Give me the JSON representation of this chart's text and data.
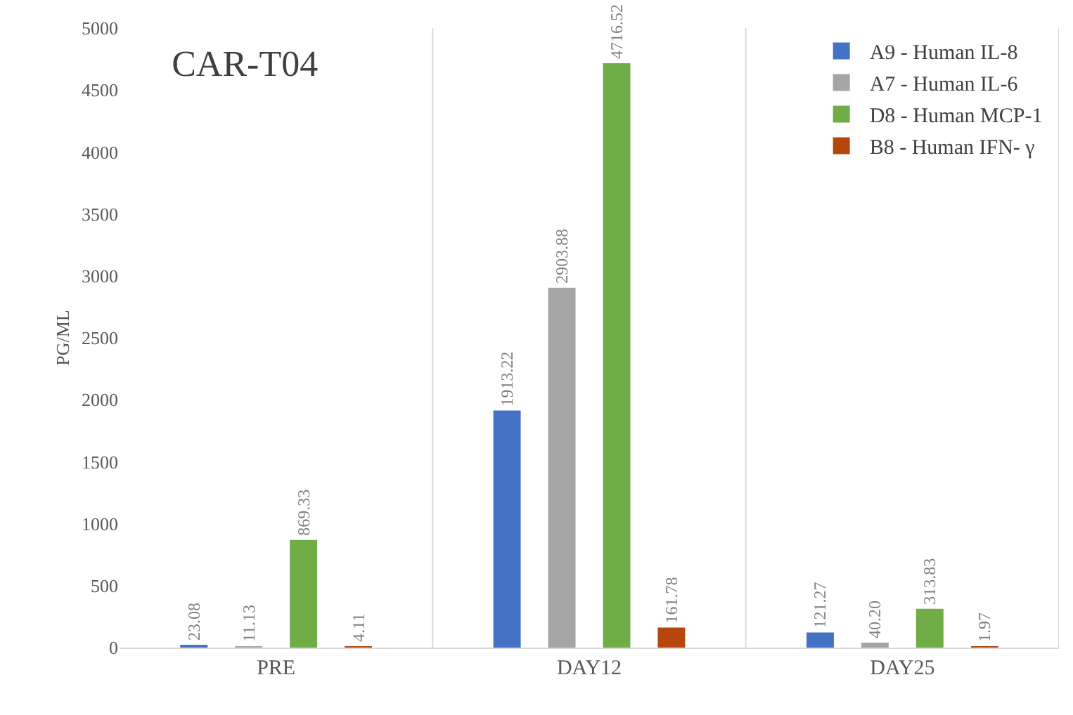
{
  "chart_data": {
    "type": "bar",
    "title": "CAR-T04",
    "ylabel": "PG/ML",
    "categories": [
      "PRE",
      "DAY12",
      "DAY25"
    ],
    "series": [
      {
        "name": "A9 - Human IL-8",
        "color": "#4472c4",
        "values": [
          23.08,
          1913.22,
          121.27
        ],
        "value_labels": [
          "23.08",
          "1913.22",
          "121.27"
        ]
      },
      {
        "name": "A7 - Human IL-6",
        "color": "#a5a5a5",
        "values": [
          11.13,
          2903.88,
          40.2
        ],
        "value_labels": [
          "11.13",
          "2903.88",
          "40.20"
        ]
      },
      {
        "name": "D8 - Human MCP-1",
        "color": "#70ad47",
        "values": [
          869.33,
          4716.52,
          313.83
        ],
        "value_labels": [
          "869.33",
          "4716.52",
          "313.83"
        ]
      },
      {
        "name": "B8 - Human IFN- γ",
        "color": "#b5470b",
        "values": [
          4.11,
          161.78,
          1.97
        ],
        "value_labels": [
          "4.11",
          "161.78",
          "1.97"
        ]
      }
    ],
    "ylim": [
      0,
      5000
    ],
    "yticks": [
      0,
      500,
      1000,
      1500,
      2000,
      2500,
      3000,
      3500,
      4000,
      4500,
      5000
    ],
    "grid": "x",
    "legend": "top right"
  }
}
